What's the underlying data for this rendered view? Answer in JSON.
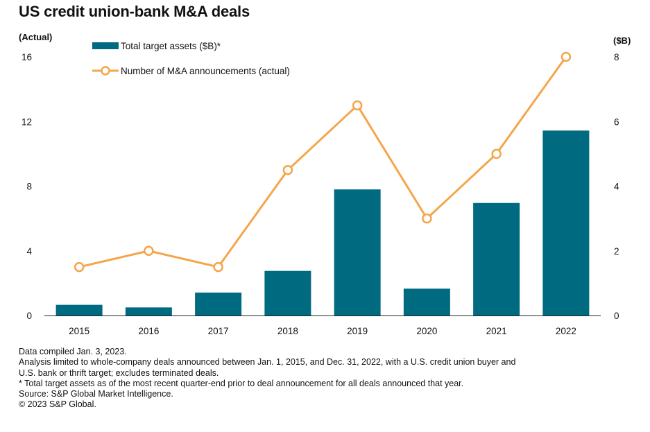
{
  "chart_data": {
    "type": "bar",
    "title": "US credit union-bank M&A deals",
    "left_axis_label": "(Actual)",
    "right_axis_label": "($B)",
    "categories": [
      "2015",
      "2016",
      "2017",
      "2018",
      "2019",
      "2020",
      "2021",
      "2022"
    ],
    "left_axis": {
      "range": [
        0,
        16
      ],
      "ticks": [
        "0",
        "4",
        "8",
        "12",
        "16"
      ]
    },
    "right_axis": {
      "range": [
        0,
        8
      ],
      "ticks": [
        "0",
        "2",
        "4",
        "6",
        "8"
      ]
    },
    "series": [
      {
        "name": "Total target assets ($B)*",
        "type": "bar",
        "axis": "right",
        "color": "#006a80",
        "values": [
          0.33,
          0.25,
          0.71,
          1.38,
          3.9,
          0.83,
          3.48,
          5.72
        ]
      },
      {
        "name": "Number of M&A announcements (actual)",
        "type": "line",
        "axis": "left",
        "color": "#f5a54a",
        "marker_fill": "#ffffff",
        "values": [
          3,
          4,
          3,
          9,
          13,
          6,
          10,
          16
        ]
      }
    ],
    "legend_position": "top-left",
    "grid": false
  },
  "notes": [
    "Data compiled Jan. 3, 2023.",
    "Analysis limited to whole-company deals announced between Jan. 1, 2015, and Dec. 31, 2022, with a U.S. credit union buyer and",
    "U.S. bank or thrift target; excludes terminated deals.",
    "* Total target assets as of the most recent quarter-end prior to deal announcement for all deals announced that year.",
    "Source: S&P Global Market Intelligence.",
    "© 2023 S&P Global."
  ]
}
